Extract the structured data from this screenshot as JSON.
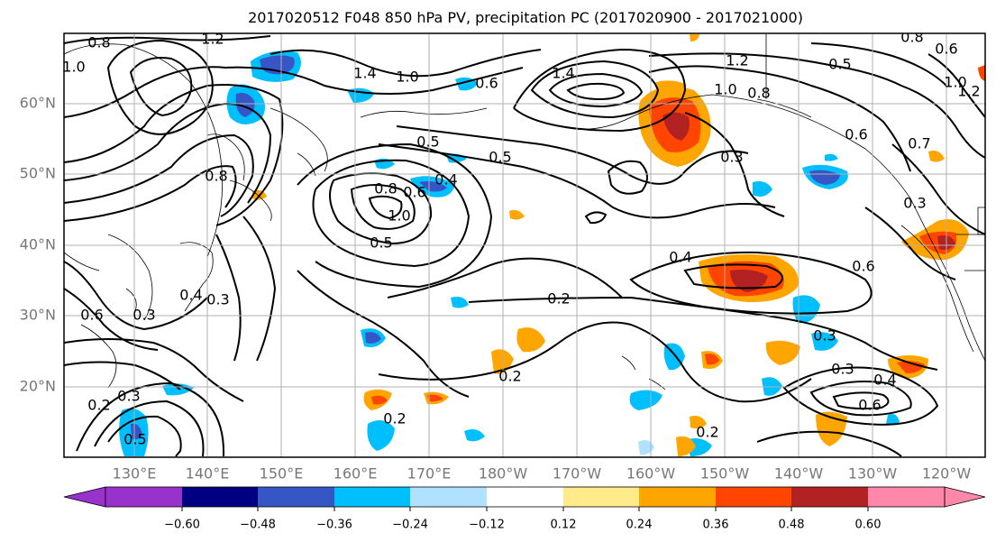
{
  "figure": {
    "title": "2017020512 F048 850 hPa PV, precipitation PC (2017020900 - 2017021000)"
  },
  "map": {
    "lon_range": [
      120,
      245
    ],
    "lat_range": [
      10,
      70
    ],
    "lat_labels": [
      "60°N",
      "50°N",
      "40°N",
      "30°N",
      "20°N"
    ],
    "lon_labels": [
      "130°E",
      "140°E",
      "150°E",
      "160°E",
      "170°E",
      "180°W",
      "170°W",
      "160°W",
      "150°W",
      "140°W",
      "130°W",
      "120°W"
    ],
    "contour_labels": [
      "0.8",
      "1.2",
      "1.0",
      "1.4",
      "1.0",
      "0.6",
      "1.4",
      "1.2",
      "1.0",
      "0.8",
      "0.5",
      "0.8",
      "0.5",
      "0.4",
      "0.8",
      "0.6",
      "1.0",
      "0.5",
      "0.4",
      "0.3",
      "0.6",
      "0.3",
      "0.3",
      "0.4",
      "0.2",
      "0.6",
      "0.2",
      "0.2",
      "0.3",
      "0.5",
      "0.4",
      "0.6",
      "0.3",
      "0.2",
      "0.3",
      "0.2",
      "0.6",
      "0.3",
      "0.6",
      "0.7",
      "0.5",
      "1.0",
      "1.2",
      "0.8"
    ]
  },
  "colorbar": {
    "colors": [
      "#9932cc",
      "#000080",
      "#3656c6",
      "#00bfff",
      "#b0e2ff",
      "#ffffff",
      "#ffeb8a",
      "#ffa500",
      "#ff4500",
      "#b22222",
      "#ff88aa"
    ],
    "tick_labels": [
      "−0.60",
      "−0.48",
      "−0.36",
      "−0.24",
      "−0.12",
      "0.12",
      "0.24",
      "0.36",
      "0.48",
      "0.60"
    ]
  }
}
